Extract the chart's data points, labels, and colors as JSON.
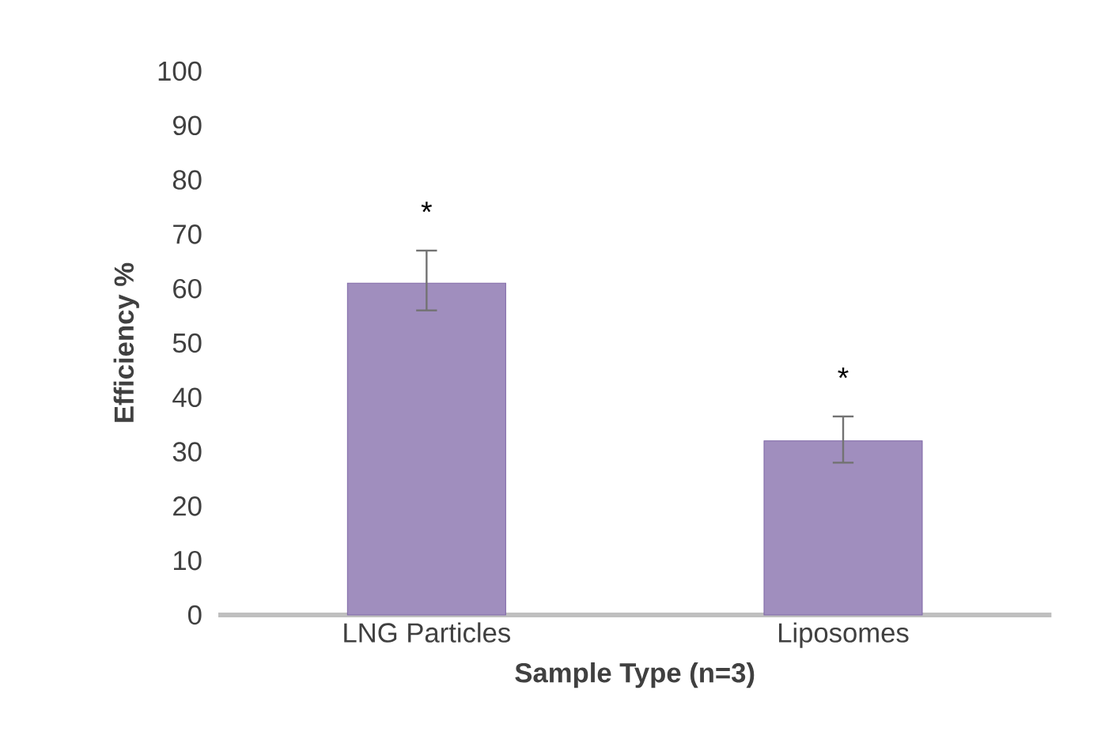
{
  "chart_data": {
    "type": "bar",
    "xlabel": "Sample Type (n=3)",
    "ylabel": "Efficiency %",
    "categories": [
      "LNG Particles",
      "Liposomes"
    ],
    "values": [
      61,
      32
    ],
    "errors": [
      [
        56,
        67
      ],
      [
        28,
        36.5
      ]
    ],
    "color": "#8069a8",
    "ylim": [
      0,
      100
    ],
    "yticks": [
      0,
      10,
      20,
      30,
      40,
      50,
      60,
      70,
      80,
      90,
      100
    ],
    "annotations": [
      "*",
      "*"
    ]
  }
}
